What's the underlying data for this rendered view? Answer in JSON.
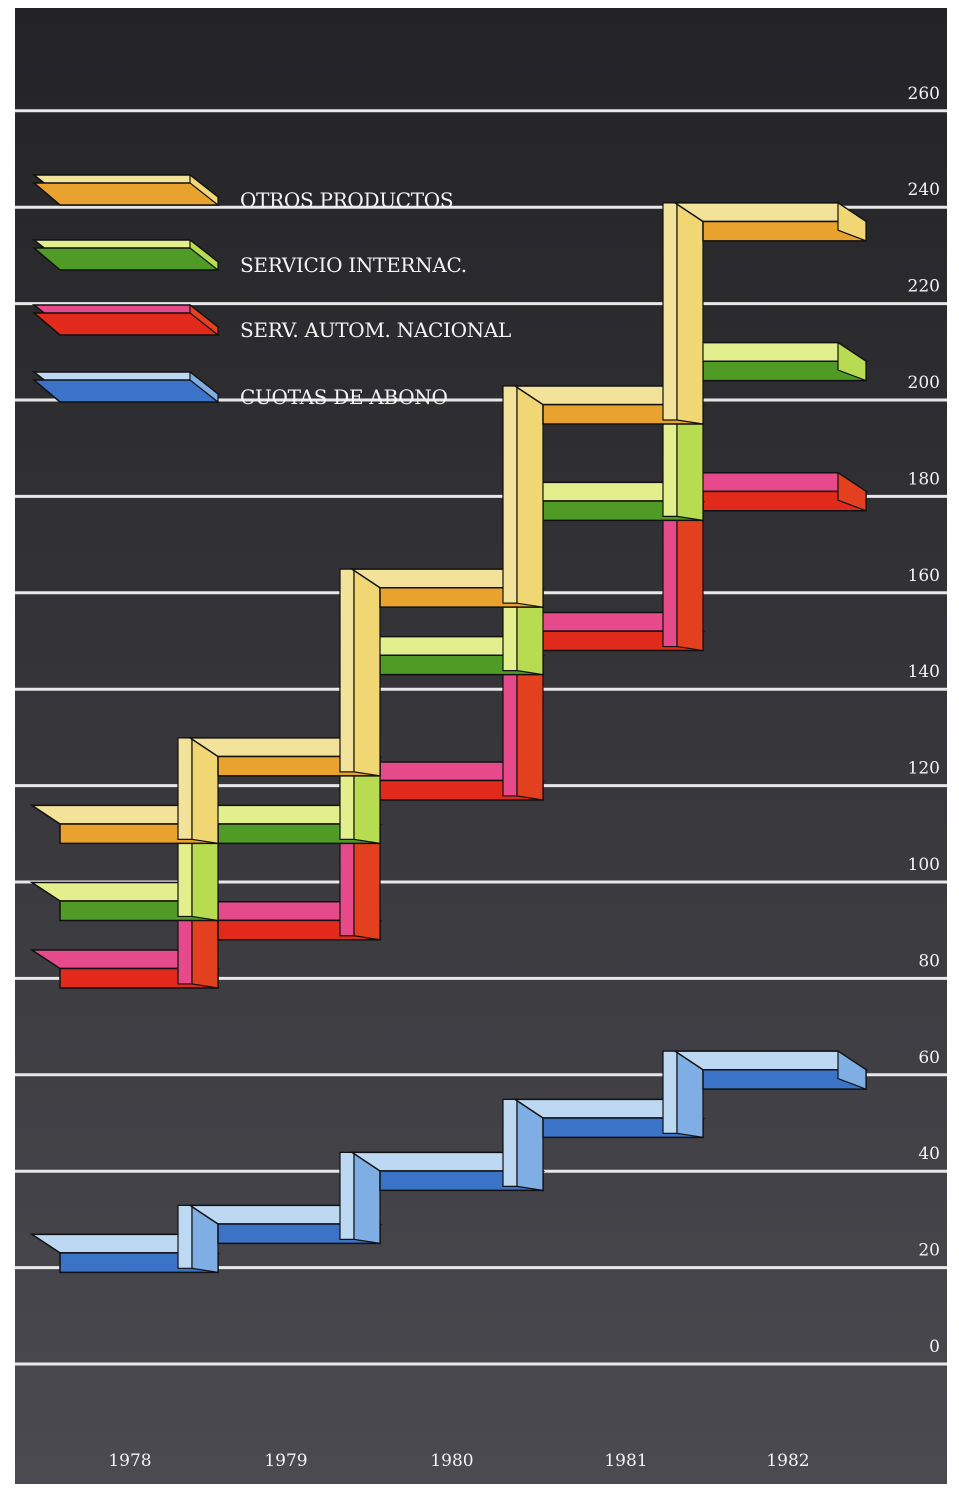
{
  "chart_data": {
    "type": "line",
    "step": true,
    "style": "3d-ribbon",
    "x": [
      "1978",
      "1979",
      "1980",
      "1981",
      "1982"
    ],
    "y_ticks": [
      "0",
      "20",
      "40",
      "60",
      "80",
      "100",
      "120",
      "140",
      "160",
      "180",
      "200",
      "220",
      "240",
      "260"
    ],
    "ylim": [
      0,
      260
    ],
    "grid": true,
    "legend_position": "top-left",
    "series": [
      {
        "name": "OTROS PRODUCTOS",
        "values": [
          113,
          127,
          162,
          200,
          238
        ],
        "color_top": "#f3e39a",
        "color_front": "#e9a22e",
        "color_side": "#f1d773"
      },
      {
        "name": "SERVICIO INTERNAC.",
        "values": [
          97,
          113,
          148,
          180,
          209
        ],
        "color_top": "#e2ef8c",
        "color_front": "#4f9b26",
        "color_side": "#b7dc52"
      },
      {
        "name": "SERV. AUTOM. NACIONAL",
        "values": [
          83,
          93,
          122,
          153,
          182
        ],
        "color_top": "#e64a8a",
        "color_front": "#e12a1c",
        "color_side": "#e2401f"
      },
      {
        "name": "CUOTAS DE ABONO",
        "values": [
          24,
          30,
          41,
          52,
          62
        ],
        "color_top": "#bcd8f2",
        "color_front": "#3a73c8",
        "color_side": "#7eaee4"
      }
    ],
    "background": "#2f2f33",
    "grid_color": "#e8e8e8"
  }
}
